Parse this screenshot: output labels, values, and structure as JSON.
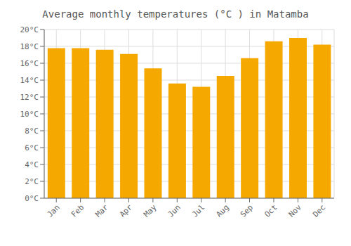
{
  "chart_data": {
    "type": "bar",
    "title": "Average monthly temperatures (°C ) in Matamba",
    "categories": [
      "Jan",
      "Feb",
      "Mar",
      "Apr",
      "May",
      "Jun",
      "Jul",
      "Aug",
      "Sep",
      "Oct",
      "Nov",
      "Dec"
    ],
    "values": [
      17.8,
      17.8,
      17.6,
      17.1,
      15.4,
      13.6,
      13.2,
      14.5,
      16.6,
      18.6,
      19.0,
      18.2
    ],
    "color": "#F5A800",
    "ylim": [
      0,
      20
    ],
    "yticks": [
      {
        "value": 0,
        "label": "0°C"
      },
      {
        "value": 2,
        "label": "2°C"
      },
      {
        "value": 4,
        "label": "4°C"
      },
      {
        "value": 6,
        "label": "6°C"
      },
      {
        "value": 8,
        "label": "8°C"
      },
      {
        "value": 10,
        "label": "10°C"
      },
      {
        "value": 12,
        "label": "12°C"
      },
      {
        "value": 14,
        "label": "14°C"
      },
      {
        "value": 16,
        "label": "16°C"
      },
      {
        "value": 18,
        "label": "18°C"
      },
      {
        "value": 20,
        "label": "20°C"
      }
    ],
    "grid": true
  }
}
